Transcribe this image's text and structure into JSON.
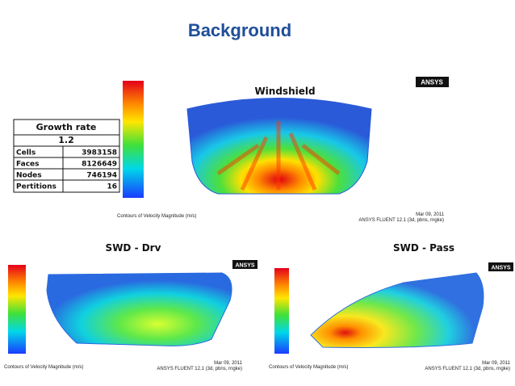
{
  "title": "Background",
  "table": {
    "header": "Growth rate",
    "value": 1.2,
    "rows": [
      [
        "Cells",
        3983158
      ],
      [
        "Faces",
        8126649
      ],
      [
        "Nodes",
        746194
      ],
      [
        "Pertitions",
        16
      ]
    ]
  },
  "panels": [
    {
      "title": "Windshield",
      "logo": "ANSYS",
      "caption": "Contours of Velocity Magnitude (m/s)",
      "date": "Mar 09, 2011",
      "solver": "ANSYS FLUENT 12.1 (3d, pbns, rngke)"
    },
    {
      "title": "SWD - Drv",
      "logo": "ANSYS",
      "caption": "Contours of Velocity Magnitude (m/s)",
      "date": "Mar 09, 2011",
      "solver": "ANSYS FLUENT 12.1 (3d, pbns, rngke)"
    },
    {
      "title": "SWD - Pass",
      "logo": "ANSYS",
      "caption": "Contours of Velocity Magnitude (m/s)",
      "date": "Mar 09, 2011",
      "solver": "ANSYS FLUENT 12.1 (3d, pbns, rngke)"
    }
  ]
}
